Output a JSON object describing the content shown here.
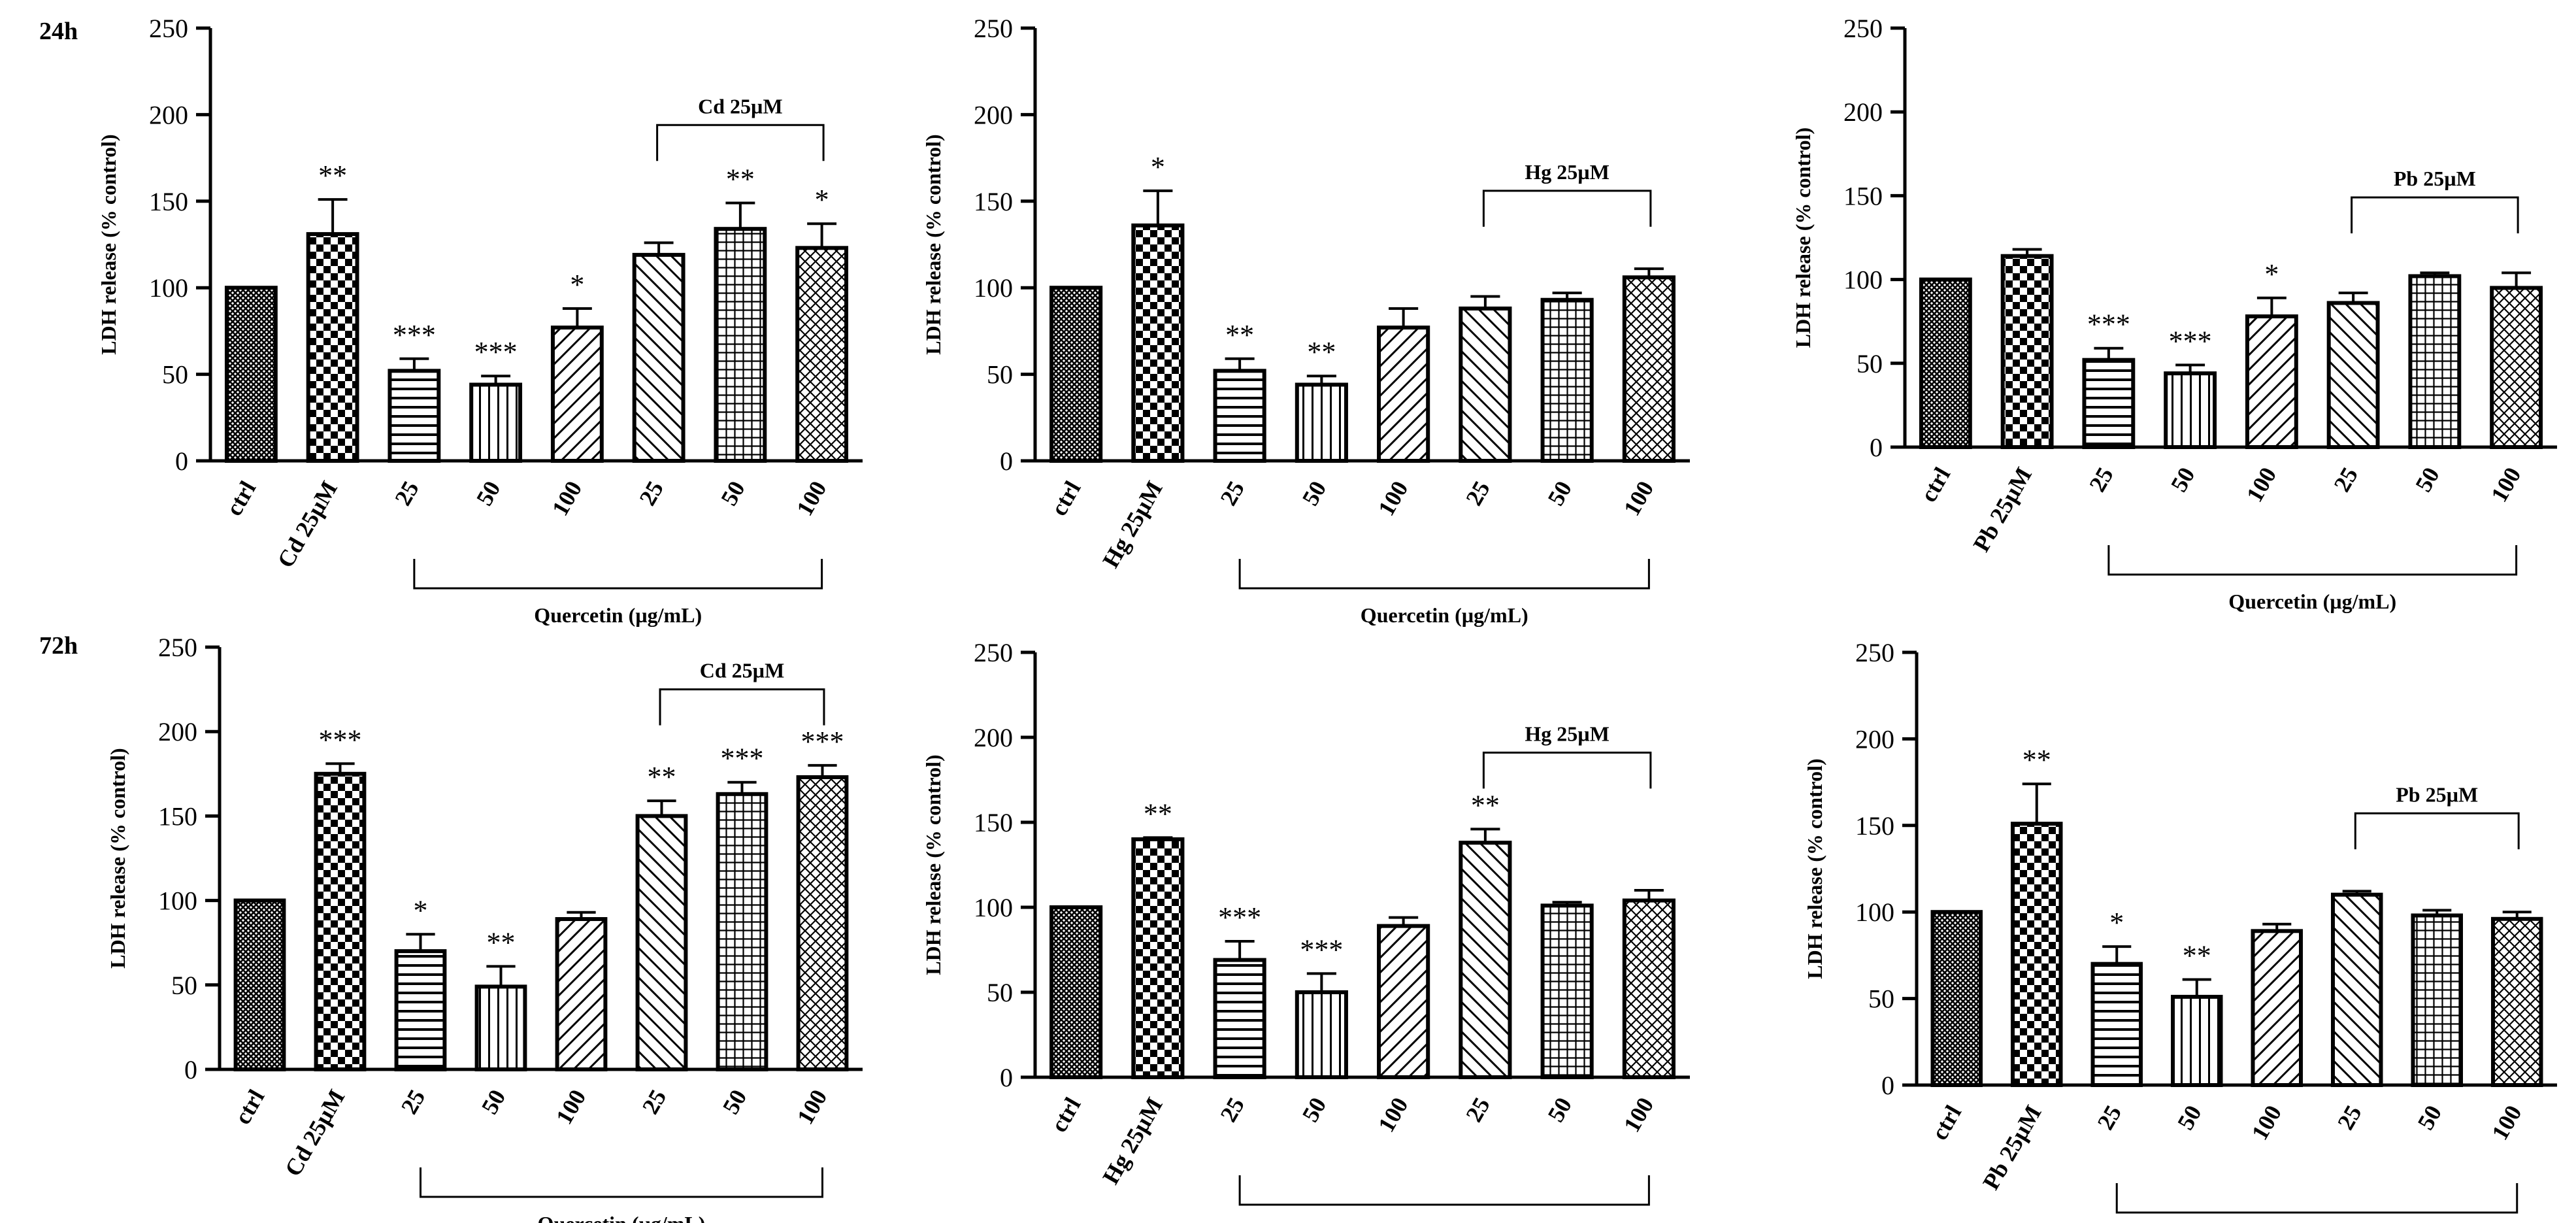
{
  "figure": {
    "row_labels": [
      "24h",
      "72h"
    ],
    "category_tick_labels": [
      "ctrl",
      "{metal} 25µM",
      "25",
      "50",
      "100",
      "25",
      "50",
      "100"
    ]
  },
  "chart_data": [
    {
      "type": "bar",
      "time": "24h",
      "metal": "Cd",
      "ylabel": "LDH release (% control)",
      "xgroup_label": "Quercetin (µg/mL)",
      "bracket_label": "Cd 25µM",
      "ylim": [
        0,
        250
      ],
      "yticks": [
        0,
        50,
        100,
        150,
        200,
        250
      ],
      "categories": [
        "ctrl",
        "Cd 25µM",
        "25",
        "50",
        "100",
        "25",
        "50",
        "100"
      ],
      "values": [
        100,
        131,
        52,
        44,
        77,
        119,
        134,
        123
      ],
      "errors": [
        0,
        20,
        7,
        5,
        11,
        7,
        15,
        14
      ],
      "significance": [
        "",
        "**",
        "***",
        "***",
        "*",
        "",
        "**",
        "*"
      ]
    },
    {
      "type": "bar",
      "time": "24h",
      "metal": "Hg",
      "ylabel": "LDH release (% control)",
      "xgroup_label": "Quercetin (µg/mL)",
      "bracket_label": "Hg 25µM",
      "ylim": [
        0,
        250
      ],
      "yticks": [
        0,
        50,
        100,
        150,
        200,
        250
      ],
      "categories": [
        "ctrl",
        "Hg 25µM",
        "25",
        "50",
        "100",
        "25",
        "50",
        "100"
      ],
      "values": [
        100,
        136,
        52,
        44,
        77,
        88,
        93,
        106
      ],
      "errors": [
        0,
        20,
        7,
        5,
        11,
        7,
        4,
        5
      ],
      "significance": [
        "",
        "*",
        "**",
        "**",
        "",
        "",
        "",
        ""
      ]
    },
    {
      "type": "bar",
      "time": "24h",
      "metal": "Pb",
      "ylabel": "LDH release (% control)",
      "xgroup_label": "Quercetin (µg/mL)",
      "bracket_label": "Pb 25µM",
      "ylim": [
        0,
        250
      ],
      "yticks": [
        0,
        50,
        100,
        150,
        200,
        250
      ],
      "categories": [
        "ctrl",
        "Pb 25µM",
        "25",
        "50",
        "100",
        "25",
        "50",
        "100"
      ],
      "values": [
        100,
        114,
        52,
        44,
        78,
        86,
        102,
        95
      ],
      "errors": [
        0,
        4,
        7,
        5,
        11,
        6,
        2,
        9
      ],
      "significance": [
        "",
        "",
        "***",
        "***",
        "*",
        "",
        "",
        ""
      ]
    },
    {
      "type": "bar",
      "time": "72h",
      "metal": "Cd",
      "ylabel": "LDH release (% control)",
      "xgroup_label": "Quercetin (µg/mL)",
      "bracket_label": "Cd 25µM",
      "ylim": [
        0,
        250
      ],
      "yticks": [
        0,
        50,
        100,
        150,
        200,
        250
      ],
      "categories": [
        "ctrl",
        "Cd 25µM",
        "25",
        "50",
        "100",
        "25",
        "50",
        "100"
      ],
      "values": [
        100,
        175,
        70,
        49,
        89,
        150,
        163,
        173
      ],
      "errors": [
        0,
        6,
        10,
        12,
        4,
        9,
        7,
        7
      ],
      "significance": [
        "",
        "***",
        "*",
        "**",
        "",
        "**",
        "***",
        "***"
      ]
    },
    {
      "type": "bar",
      "time": "72h",
      "metal": "Hg",
      "ylabel": "LDH release (% control)",
      "xgroup_label": "Quercetin (µg/mL)",
      "bracket_label": "Hg 25µM",
      "ylim": [
        0,
        250
      ],
      "yticks": [
        0,
        50,
        100,
        150,
        200,
        250
      ],
      "categories": [
        "ctrl",
        "Hg 25µM",
        "25",
        "50",
        "100",
        "25",
        "50",
        "100"
      ],
      "values": [
        100,
        140,
        69,
        50,
        89,
        138,
        101,
        104
      ],
      "errors": [
        0,
        1,
        11,
        11,
        5,
        8,
        2,
        6
      ],
      "significance": [
        "",
        "**",
        "***",
        "***",
        "",
        "**",
        "",
        ""
      ]
    },
    {
      "type": "bar",
      "time": "72h",
      "metal": "Pb",
      "ylabel": "LDH release (% control)",
      "xgroup_label": "Quercetin (µg/mL)",
      "bracket_label": "Pb 25µM",
      "ylim": [
        0,
        250
      ],
      "yticks": [
        0,
        50,
        100,
        150,
        200,
        250
      ],
      "categories": [
        "ctrl",
        "Pb 25µM",
        "25",
        "50",
        "100",
        "25",
        "50",
        "100"
      ],
      "values": [
        100,
        151,
        70,
        51,
        89,
        110,
        98,
        96
      ],
      "errors": [
        0,
        23,
        10,
        10,
        4,
        2,
        3,
        4
      ],
      "significance": [
        "",
        "**",
        "*",
        "**",
        "",
        "",
        "",
        ""
      ]
    }
  ],
  "style": {
    "ink": "#000000",
    "fill": "#ffffff",
    "pattern_names": [
      "fine-crosshatch",
      "checkerboard",
      "horizontal-lines",
      "vertical-lines",
      "diagonal-up",
      "diagonal-down",
      "grid",
      "diagonal-cross"
    ]
  }
}
